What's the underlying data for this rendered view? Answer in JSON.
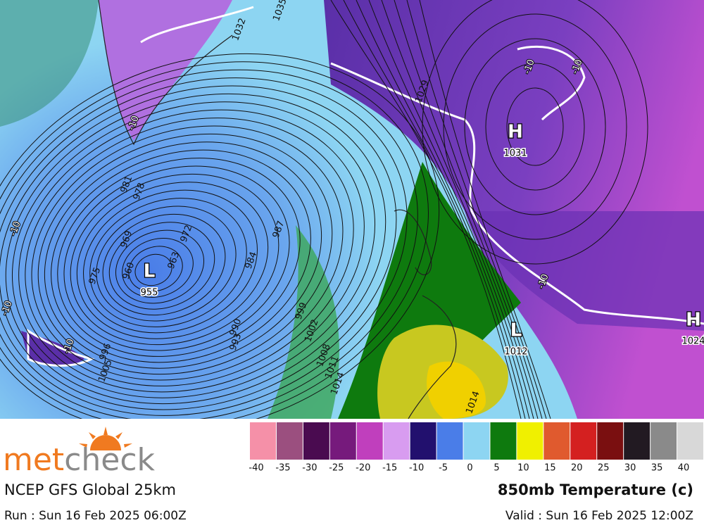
{
  "logo": {
    "part1": "met",
    "part2": "check"
  },
  "model": "NCEP GFS Global 25km",
  "run": "Run : Sun 16 Feb 2025 06:00Z",
  "title": "850mb Temperature (c)",
  "valid": "Valid : Sun 16 Feb 2025 12:00Z",
  "colorbar": {
    "colors": [
      "#f590a8",
      "#9b4f7f",
      "#4a0b50",
      "#761a7c",
      "#c03fbd",
      "#d89cf0",
      "#22106e",
      "#4a7de8",
      "#8dd5f2",
      "#0e7a0e",
      "#f0f000",
      "#e05a2e",
      "#d42020",
      "#7a0f10",
      "#221a22",
      "#8a8a8a",
      "#d8d8d8"
    ],
    "labels": [
      -40,
      -35,
      -30,
      -25,
      -20,
      -15,
      -10,
      -5,
      0,
      5,
      10,
      15,
      20,
      25,
      30,
      35,
      40
    ]
  },
  "pressure_systems": [
    {
      "type": "L",
      "value": "955"
    },
    {
      "type": "H",
      "value": "1031"
    },
    {
      "type": "L",
      "value": "1012"
    },
    {
      "type": "H",
      "value": "1024"
    }
  ],
  "isobar_labels": [
    "981",
    "978",
    "969",
    "972",
    "987",
    "984",
    "990",
    "993",
    "999",
    "1002",
    "1008",
    "1011",
    "1014",
    "1014",
    "1032",
    "1035",
    "1029",
    "975",
    "960",
    "963",
    "996",
    "1005"
  ],
  "temperature_labels": [
    "-10",
    "-10",
    "-10",
    "-10",
    "-10",
    "-10",
    "-10"
  ]
}
